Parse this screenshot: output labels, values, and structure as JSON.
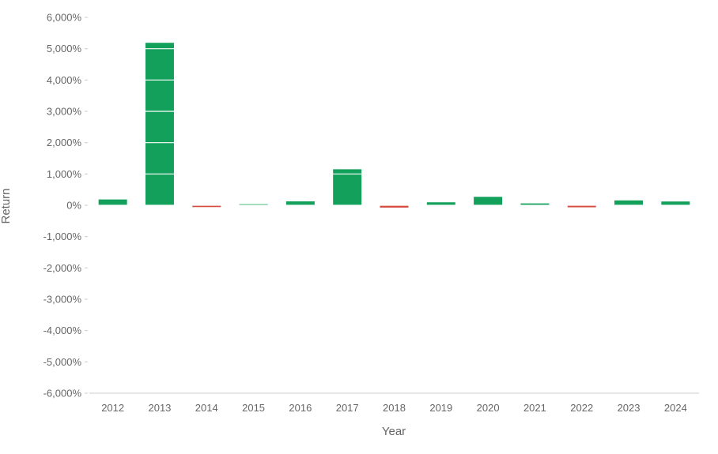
{
  "chart_data": {
    "type": "bar",
    "title": "",
    "xlabel": "Year",
    "ylabel": "Return",
    "ylim": [
      -6000,
      6000
    ],
    "yticks": [
      6000,
      5000,
      4000,
      3000,
      2000,
      1000,
      0,
      -1000,
      -2000,
      -3000,
      -4000,
      -5000,
      -6000
    ],
    "ytick_labels": [
      "6,000%",
      "5,000%",
      "4,000%",
      "3,000%",
      "2,000%",
      "1,000%",
      "0%",
      "-1,000%",
      "-2,000%",
      "-3,000%",
      "-4,000%",
      "-5,000%",
      "-6,000%"
    ],
    "categories": [
      "2012",
      "2013",
      "2014",
      "2015",
      "2016",
      "2017",
      "2018",
      "2019",
      "2020",
      "2021",
      "2022",
      "2023",
      "2024"
    ],
    "values": [
      186,
      5188,
      -57,
      35,
      125,
      1150,
      -73,
      95,
      270,
      60,
      -64,
      156,
      121
    ],
    "grid": true,
    "legend": "none",
    "colors": {
      "positive": "#13a05a",
      "negative": "#d64b3e",
      "gridline": "#ffffff",
      "axis": "#cccccc",
      "text": "#666666"
    }
  }
}
